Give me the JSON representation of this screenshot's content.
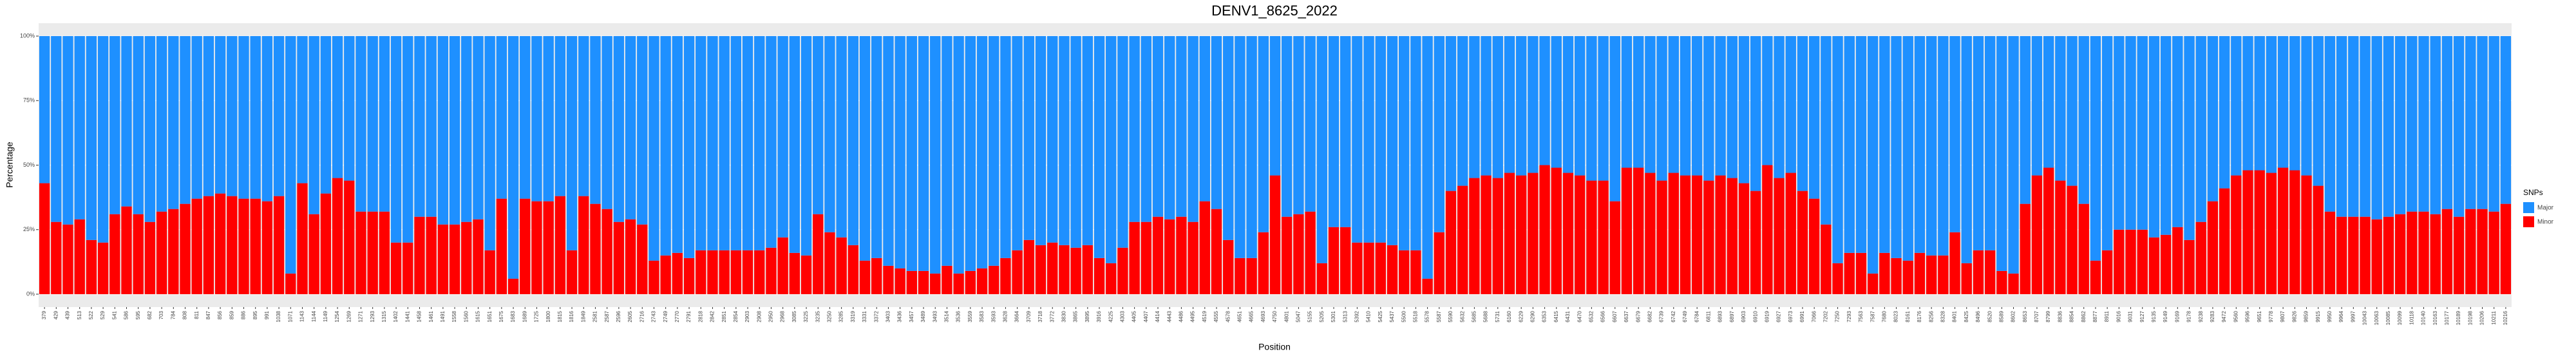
{
  "chart_data": {
    "type": "stacked_bar",
    "title": "DENV1_8625_2022",
    "x_label": "Position",
    "y_label": "Percentage",
    "legend_title": "SNPs",
    "legend": "right",
    "grid": true,
    "ylim": [
      -5,
      105
    ],
    "yticks": [
      {
        "value": 0,
        "label": "0%"
      },
      {
        "value": 25,
        "label": "25%"
      },
      {
        "value": 50,
        "label": "50%"
      },
      {
        "value": 75,
        "label": "75%"
      },
      {
        "value": 100,
        "label": "100%"
      }
    ],
    "categories": [
      379,
      429,
      439,
      513,
      522,
      529,
      541,
      586,
      595,
      682,
      703,
      784,
      808,
      811,
      847,
      856,
      859,
      886,
      895,
      991,
      1038,
      1071,
      1143,
      1144,
      1149,
      1254,
      1269,
      1271,
      1293,
      1315,
      1402,
      1441,
      1458,
      1461,
      1491,
      1558,
      1560,
      1615,
      1651,
      1675,
      1683,
      1689,
      1725,
      1800,
      1815,
      1816,
      1849,
      2581,
      2587,
      2596,
      2605,
      2716,
      2743,
      2749,
      2770,
      2791,
      2818,
      2842,
      2851,
      2854,
      2903,
      2908,
      2950,
      2968,
      3085,
      3225,
      3235,
      3250,
      3285,
      3319,
      3331,
      3372,
      3403,
      3436,
      3457,
      3489,
      3493,
      3514,
      3536,
      3559,
      3583,
      3593,
      3628,
      3664,
      3709,
      3718,
      3772,
      3830,
      3865,
      3895,
      3916,
      4225,
      4303,
      4405,
      4407,
      4414,
      4443,
      4486,
      4495,
      4519,
      4555,
      4578,
      4651,
      4665,
      4693,
      4750,
      4801,
      5047,
      5155,
      5205,
      5301,
      5313,
      5392,
      5410,
      5425,
      5437,
      5500,
      5518,
      5578,
      5587,
      5590,
      5632,
      5685,
      5688,
      5731,
      6160,
      6229,
      6290,
      6353,
      6415,
      6431,
      6470,
      6532,
      6566,
      6607,
      6637,
      6679,
      6682,
      6739,
      6742,
      6749,
      6784,
      6811,
      6893,
      6897,
      6903,
      6910,
      6919,
      6927,
      6973,
      6991,
      7066,
      7202,
      7250,
      7293,
      7563,
      7587,
      7680,
      8023,
      8161,
      8176,
      8256,
      8328,
      8401,
      8425,
      8496,
      8520,
      8589,
      8602,
      8653,
      8707,
      8799,
      8836,
      8854,
      8862,
      8877,
      8911,
      9016,
      9031,
      9127,
      9135,
      9149,
      9169,
      9178,
      9238,
      9283,
      9472,
      9560,
      9596,
      9651,
      9778,
      9807,
      9826,
      9859,
      9915,
      9950,
      9964,
      9997,
      10043,
      10063,
      10085,
      10099,
      10118,
      10140,
      10163,
      10177,
      10189,
      10198,
      10206,
      10211,
      10216
    ],
    "series": [
      {
        "name": "Major",
        "color": "#1E90FF",
        "values": [
          57,
          72,
          73,
          71,
          79,
          80,
          69,
          66,
          69,
          72,
          68,
          67,
          65,
          63,
          62,
          61,
          62,
          63,
          63,
          64,
          62,
          92,
          57,
          69,
          61,
          55,
          56,
          68,
          68,
          68,
          80,
          80,
          70,
          70,
          73,
          73,
          72,
          71,
          83,
          63,
          94,
          63,
          64,
          64,
          62,
          83,
          62,
          65,
          67,
          72,
          71,
          73,
          87,
          85,
          84,
          86,
          83,
          83,
          83,
          83,
          83,
          83,
          82,
          78,
          84,
          85,
          69,
          76,
          78,
          81,
          87,
          86,
          89,
          90,
          91,
          91,
          92,
          89,
          92,
          91,
          90,
          89,
          86,
          83,
          79,
          81,
          80,
          81,
          82,
          81,
          86,
          88,
          82,
          72,
          72,
          70,
          71,
          70,
          72,
          64,
          67,
          79,
          86,
          86,
          76,
          54,
          70,
          69,
          68,
          88,
          74,
          74,
          80,
          80,
          80,
          81,
          83,
          83,
          94,
          76,
          60,
          58,
          55,
          54,
          55,
          53,
          54,
          53,
          50,
          51,
          53,
          54,
          56,
          56,
          64,
          51,
          51,
          53,
          56,
          53,
          54,
          54,
          56,
          54,
          55,
          57,
          60,
          50,
          55,
          53,
          60,
          63,
          73,
          88,
          84,
          84,
          92,
          84,
          86,
          87,
          84,
          85,
          85,
          76,
          88,
          83,
          83,
          91,
          92,
          65,
          54,
          51,
          56,
          58,
          65,
          87,
          83,
          75,
          75,
          75,
          78,
          77,
          74,
          79,
          72,
          64,
          59,
          54,
          52,
          52,
          53,
          51,
          52,
          54,
          58,
          68,
          70,
          70,
          70,
          71,
          70,
          69,
          68,
          68,
          69,
          67,
          70,
          67,
          67,
          68,
          65
        ]
      },
      {
        "name": "Minor",
        "color": "#FF0000",
        "values": [
          43,
          28,
          27,
          29,
          21,
          20,
          31,
          34,
          31,
          28,
          32,
          33,
          35,
          37,
          38,
          39,
          38,
          37,
          37,
          36,
          38,
          8,
          43,
          31,
          39,
          45,
          44,
          32,
          32,
          32,
          20,
          20,
          30,
          30,
          27,
          27,
          28,
          29,
          17,
          37,
          6,
          37,
          36,
          36,
          38,
          17,
          38,
          35,
          33,
          28,
          29,
          27,
          13,
          15,
          16,
          14,
          17,
          17,
          17,
          17,
          17,
          17,
          18,
          22,
          16,
          15,
          31,
          24,
          22,
          19,
          13,
          14,
          11,
          10,
          9,
          9,
          8,
          11,
          8,
          9,
          10,
          11,
          14,
          17,
          21,
          19,
          20,
          19,
          18,
          19,
          14,
          12,
          18,
          28,
          28,
          30,
          29,
          30,
          28,
          36,
          33,
          21,
          14,
          14,
          24,
          46,
          30,
          31,
          32,
          12,
          26,
          26,
          20,
          20,
          20,
          19,
          17,
          17,
          6,
          24,
          40,
          42,
          45,
          46,
          45,
          47,
          46,
          47,
          50,
          49,
          47,
          46,
          44,
          44,
          36,
          49,
          49,
          47,
          44,
          47,
          46,
          46,
          44,
          46,
          45,
          43,
          40,
          50,
          45,
          47,
          40,
          37,
          27,
          12,
          16,
          16,
          8,
          16,
          14,
          13,
          16,
          15,
          15,
          24,
          12,
          17,
          17,
          9,
          8,
          35,
          46,
          49,
          44,
          42,
          35,
          13,
          17,
          25,
          25,
          25,
          22,
          23,
          26,
          21,
          28,
          36,
          41,
          46,
          48,
          48,
          47,
          49,
          48,
          46,
          42,
          32,
          30,
          30,
          30,
          29,
          30,
          31,
          32,
          32,
          31,
          33,
          30,
          33,
          33,
          32,
          35
        ]
      }
    ]
  }
}
